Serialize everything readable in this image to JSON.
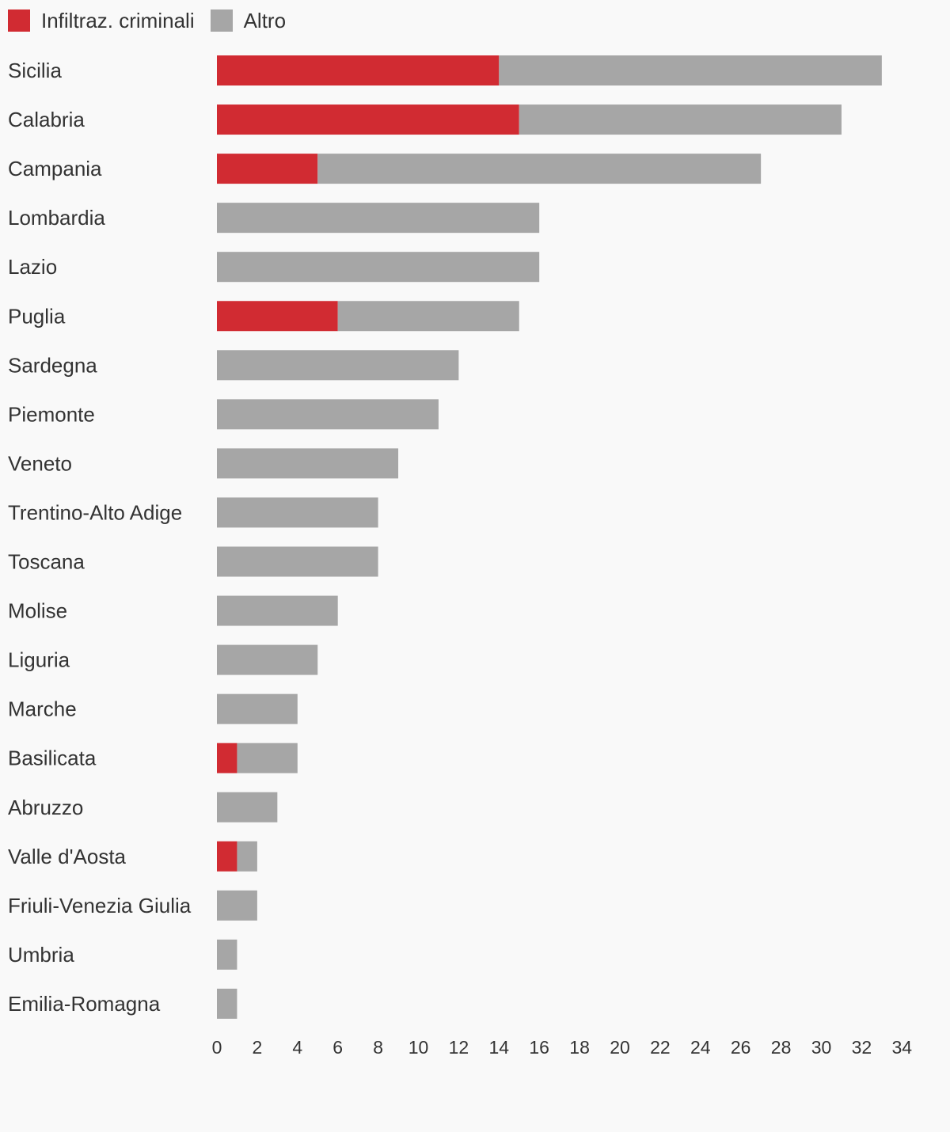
{
  "chart_data": {
    "type": "bar",
    "orientation": "horizontal",
    "stacked": true,
    "title": "",
    "xlabel": "",
    "ylabel": "",
    "xlim": [
      0,
      34
    ],
    "x_ticks": [
      "0",
      "2",
      "4",
      "6",
      "8",
      "10",
      "12",
      "14",
      "16",
      "18",
      "20",
      "22",
      "24",
      "26",
      "28",
      "30",
      "32",
      "34"
    ],
    "grid": false,
    "legend_position": "top-left",
    "categories": [
      "Sicilia",
      "Calabria",
      "Campania",
      "Lombardia",
      "Lazio",
      "Puglia",
      "Sardegna",
      "Piemonte",
      "Veneto",
      "Trentino-Alto Adige",
      "Toscana",
      "Molise",
      "Liguria",
      "Marche",
      "Basilicata",
      "Abruzzo",
      "Valle d'Aosta",
      "Friuli-Venezia Giulia",
      "Umbria",
      "Emilia-Romagna"
    ],
    "series": [
      {
        "name": "Infiltraz. criminali",
        "color": "#d12b32",
        "values": [
          14,
          15,
          5,
          0,
          0,
          6,
          0,
          0,
          0,
          0,
          0,
          0,
          0,
          0,
          1,
          0,
          1,
          0,
          0,
          0
        ]
      },
      {
        "name": "Altro",
        "color": "#a6a6a6",
        "values": [
          19,
          16,
          22,
          16,
          16,
          9,
          12,
          11,
          9,
          8,
          8,
          6,
          5,
          4,
          3,
          3,
          1,
          2,
          1,
          1
        ]
      }
    ]
  }
}
